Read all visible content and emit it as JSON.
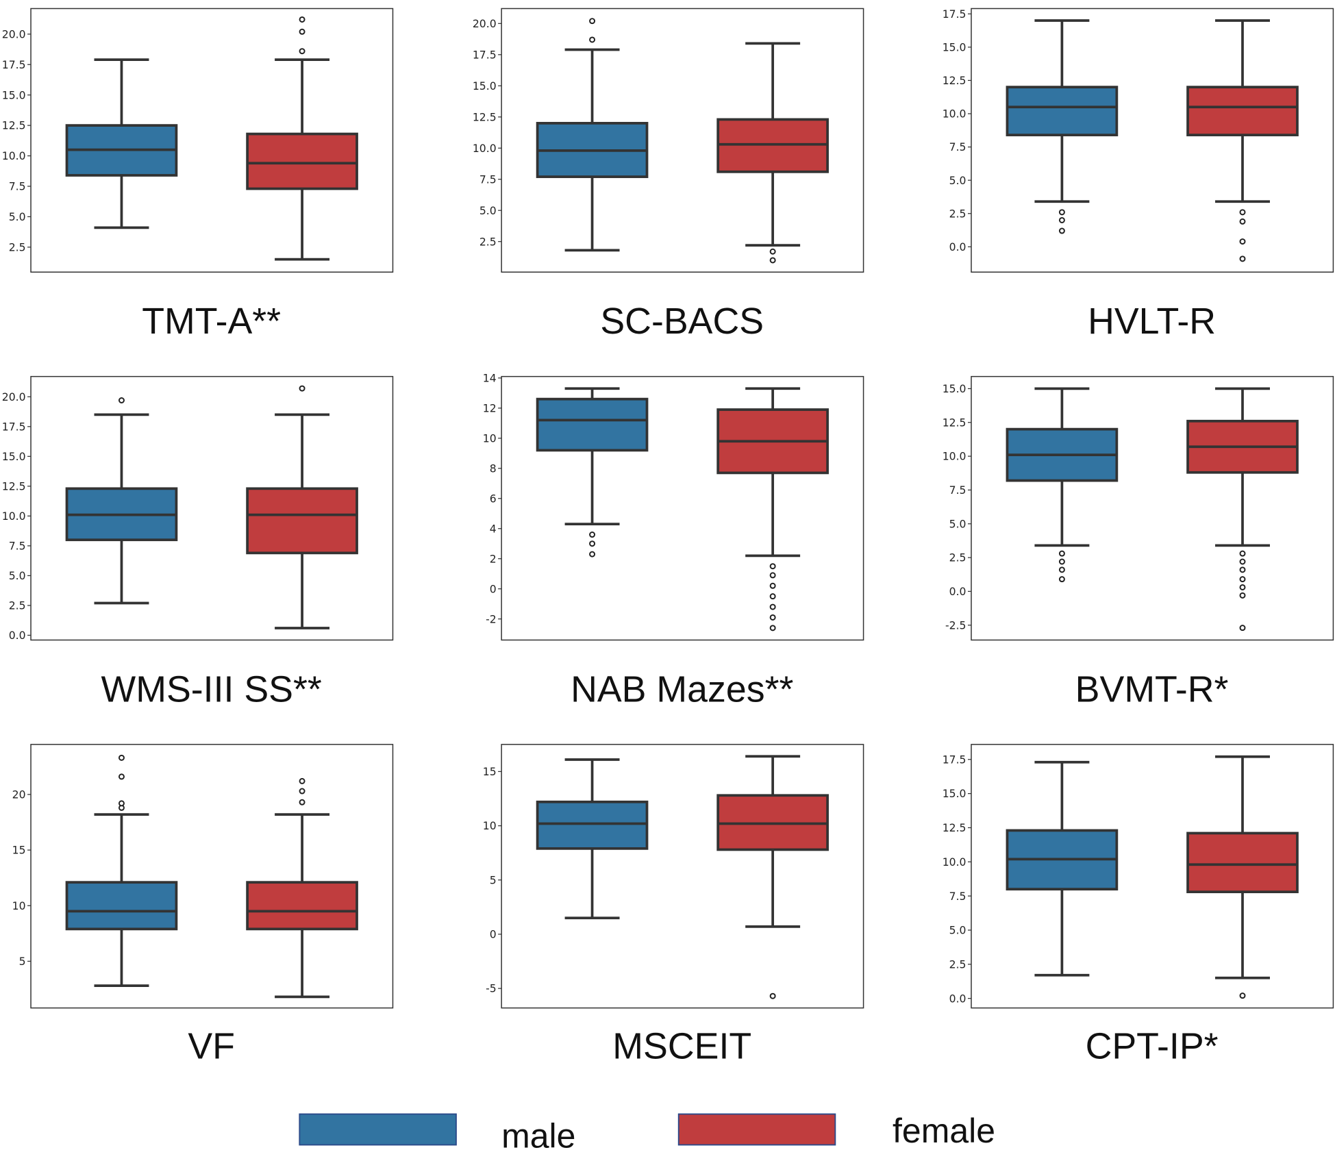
{
  "chart_data": {
    "type": "box",
    "colors": {
      "male": "#3274a1",
      "female": "#c03d3e",
      "line": "#333333"
    },
    "legend": {
      "placement": "bottom-center",
      "entries": [
        "male",
        "female"
      ]
    },
    "panels": [
      {
        "title": "TMT-A**",
        "ylim": [
          0.45,
          22.1
        ],
        "ticks": [
          "2.5",
          "5.0",
          "7.5",
          "10.0",
          "12.5",
          "15.0",
          "17.5",
          "20.0"
        ],
        "male": {
          "whislo": 4.1,
          "q1": 8.4,
          "med": 10.5,
          "q3": 12.5,
          "whishi": 17.9,
          "fliers": []
        },
        "female": {
          "whislo": 1.5,
          "q1": 7.3,
          "med": 9.4,
          "q3": 11.8,
          "whishi": 17.9,
          "fliers": [
            18.6,
            20.2,
            21.2
          ]
        }
      },
      {
        "title": "SC-BACS",
        "ylim": [
          0.05,
          21.2
        ],
        "ticks": [
          "2.5",
          "5.0",
          "7.5",
          "10.0",
          "12.5",
          "15.0",
          "17.5",
          "20.0"
        ],
        "male": {
          "whislo": 1.8,
          "q1": 7.7,
          "med": 9.8,
          "q3": 12.0,
          "whishi": 17.9,
          "fliers": [
            18.7,
            20.2
          ]
        },
        "female": {
          "whislo": 2.2,
          "q1": 8.1,
          "med": 10.3,
          "q3": 12.3,
          "whishi": 18.4,
          "fliers": [
            1.7,
            1.0
          ]
        }
      },
      {
        "title": "HVLT-R",
        "ylim": [
          -1.9,
          17.9
        ],
        "ticks": [
          "0.0",
          "2.5",
          "5.0",
          "7.5",
          "10.0",
          "12.5",
          "15.0",
          "17.5"
        ],
        "male": {
          "whislo": 3.4,
          "q1": 8.4,
          "med": 10.5,
          "q3": 12.0,
          "whishi": 17.0,
          "fliers": [
            2.6,
            2.0,
            1.2
          ]
        },
        "female": {
          "whislo": 3.4,
          "q1": 8.4,
          "med": 10.5,
          "q3": 12.0,
          "whishi": 17.0,
          "fliers": [
            2.6,
            1.9,
            0.4,
            -0.9
          ]
        }
      },
      {
        "title": "WMS-III SS**",
        "ylim": [
          -0.4,
          21.7
        ],
        "ticks": [
          "0.0",
          "2.5",
          "5.0",
          "7.5",
          "10.0",
          "12.5",
          "15.0",
          "17.5",
          "20.0"
        ],
        "male": {
          "whislo": 2.7,
          "q1": 8.0,
          "med": 10.1,
          "q3": 12.3,
          "whishi": 18.5,
          "fliers": [
            19.7
          ]
        },
        "female": {
          "whislo": 0.6,
          "q1": 6.9,
          "med": 10.1,
          "q3": 12.3,
          "whishi": 18.5,
          "fliers": [
            20.7
          ]
        }
      },
      {
        "title": "NAB Mazes**",
        "ylim": [
          -3.4,
          14.1
        ],
        "ticks": [
          "-2",
          "0",
          "2",
          "4",
          "6",
          "8",
          "10",
          "12",
          "14"
        ],
        "male": {
          "whislo": 4.3,
          "q1": 9.2,
          "med": 11.2,
          "q3": 12.6,
          "whishi": 13.3,
          "fliers": [
            3.6,
            3.0,
            2.3
          ]
        },
        "female": {
          "whislo": 2.2,
          "q1": 7.7,
          "med": 9.8,
          "q3": 11.9,
          "whishi": 13.3,
          "fliers": [
            1.5,
            0.9,
            0.2,
            -0.5,
            -1.2,
            -1.9,
            -2.6
          ]
        }
      },
      {
        "title": "BVMT-R*",
        "ylim": [
          -3.6,
          15.9
        ],
        "ticks": [
          "-2.5",
          "0.0",
          "2.5",
          "5.0",
          "7.5",
          "10.0",
          "12.5",
          "15.0"
        ],
        "male": {
          "whislo": 3.4,
          "q1": 8.2,
          "med": 10.1,
          "q3": 12.0,
          "whishi": 15.0,
          "fliers": [
            2.8,
            2.2,
            1.6,
            0.9
          ]
        },
        "female": {
          "whislo": 3.4,
          "q1": 8.8,
          "med": 10.7,
          "q3": 12.6,
          "whishi": 15.0,
          "fliers": [
            2.8,
            2.2,
            1.6,
            0.9,
            0.3,
            -0.3,
            -2.7
          ]
        }
      },
      {
        "title": "VF",
        "ylim": [
          0.8,
          24.5
        ],
        "ticks": [
          "5",
          "10",
          "15",
          "20"
        ],
        "male": {
          "whislo": 2.8,
          "q1": 7.9,
          "med": 9.5,
          "q3": 12.1,
          "whishi": 18.2,
          "fliers": [
            18.8,
            19.2,
            21.6,
            23.3
          ]
        },
        "female": {
          "whislo": 1.8,
          "q1": 7.9,
          "med": 9.5,
          "q3": 12.1,
          "whishi": 18.2,
          "fliers": [
            19.3,
            20.3,
            21.2
          ]
        }
      },
      {
        "title": "MSCEIT",
        "ylim": [
          -6.8,
          17.5
        ],
        "ticks": [
          "-5",
          "0",
          "5",
          "10",
          "15"
        ],
        "male": {
          "whislo": 1.5,
          "q1": 7.9,
          "med": 10.2,
          "q3": 12.2,
          "whishi": 16.1,
          "fliers": []
        },
        "female": {
          "whislo": 0.7,
          "q1": 7.8,
          "med": 10.2,
          "q3": 12.8,
          "whishi": 16.4,
          "fliers": [
            -5.7
          ]
        }
      },
      {
        "title": "CPT-IP*",
        "ylim": [
          -0.7,
          18.6
        ],
        "ticks": [
          "0.0",
          "2.5",
          "5.0",
          "7.5",
          "10.0",
          "12.5",
          "15.0",
          "17.5"
        ],
        "male": {
          "whislo": 1.7,
          "q1": 8.0,
          "med": 10.2,
          "q3": 12.3,
          "whishi": 17.3,
          "fliers": []
        },
        "female": {
          "whislo": 1.5,
          "q1": 7.8,
          "med": 9.8,
          "q3": 12.1,
          "whishi": 17.7,
          "fliers": [
            0.2
          ]
        }
      }
    ]
  }
}
